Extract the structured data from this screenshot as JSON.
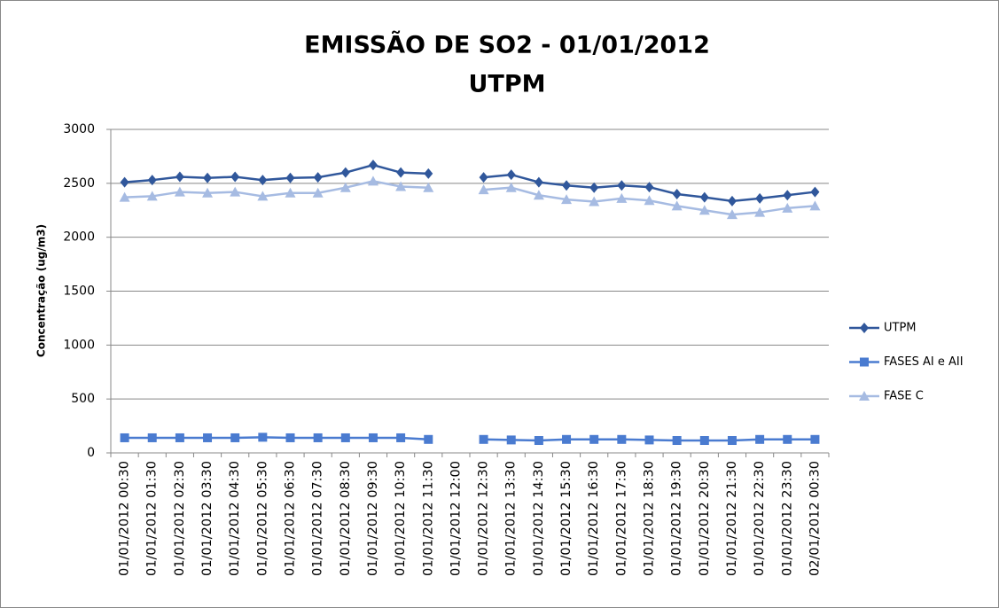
{
  "chart_data": {
    "type": "line",
    "title": "EMISSÃO DE SO2 - 01/01/2012",
    "subtitle": "UTPM",
    "y_label": "Concentração (ug/m3)",
    "categories": [
      "01/01/2012 00:30",
      "01/01/2012 01:30",
      "01/01/2012 02:30",
      "01/01/2012 03:30",
      "01/01/2012 04:30",
      "01/01/2012 05:30",
      "01/01/2012 06:30",
      "01/01/2012 07:30",
      "01/01/2012 08:30",
      "01/01/2012 09:30",
      "01/01/2012 10:30",
      "01/01/2012 11:30",
      "01/01/2012 12:00",
      "01/01/2012 12:30",
      "01/01/2012 13:30",
      "01/01/2012 14:30",
      "01/01/2012 15:30",
      "01/01/2012 16:30",
      "01/01/2012 17:30",
      "01/01/2012 18:30",
      "01/01/2012 19:30",
      "01/01/2012 20:30",
      "01/01/2012 21:30",
      "01/01/2012 22:30",
      "01/01/2012 23:30",
      "02/01/2012 00:30"
    ],
    "series": [
      {
        "name": "UTPM",
        "color": "#30579b",
        "marker": "diamond",
        "values": [
          2510,
          2530,
          2560,
          2550,
          2560,
          2530,
          2550,
          2555,
          2600,
          2670,
          2600,
          2590,
          null,
          2555,
          2580,
          2510,
          2480,
          2460,
          2480,
          2465,
          2400,
          2370,
          2335,
          2360,
          2390,
          2420
        ]
      },
      {
        "name": "FASES AI e AII",
        "color": "#4a7bd0",
        "marker": "square",
        "values": [
          140,
          140,
          140,
          140,
          140,
          145,
          140,
          140,
          140,
          140,
          140,
          125,
          null,
          125,
          120,
          115,
          125,
          125,
          125,
          120,
          115,
          115,
          115,
          125,
          125,
          125
        ]
      },
      {
        "name": "FASE C",
        "color": "#a6bbe2",
        "marker": "triangle",
        "values": [
          2370,
          2380,
          2420,
          2410,
          2420,
          2380,
          2410,
          2410,
          2460,
          2520,
          2470,
          2460,
          null,
          2440,
          2460,
          2390,
          2350,
          2330,
          2360,
          2340,
          2290,
          2250,
          2210,
          2230,
          2270,
          2290
        ]
      }
    ],
    "ylim": [
      0,
      3000
    ],
    "yticks": [
      0,
      500,
      1000,
      1500,
      2000,
      2500,
      3000
    ],
    "grid": true,
    "legend": "right"
  }
}
